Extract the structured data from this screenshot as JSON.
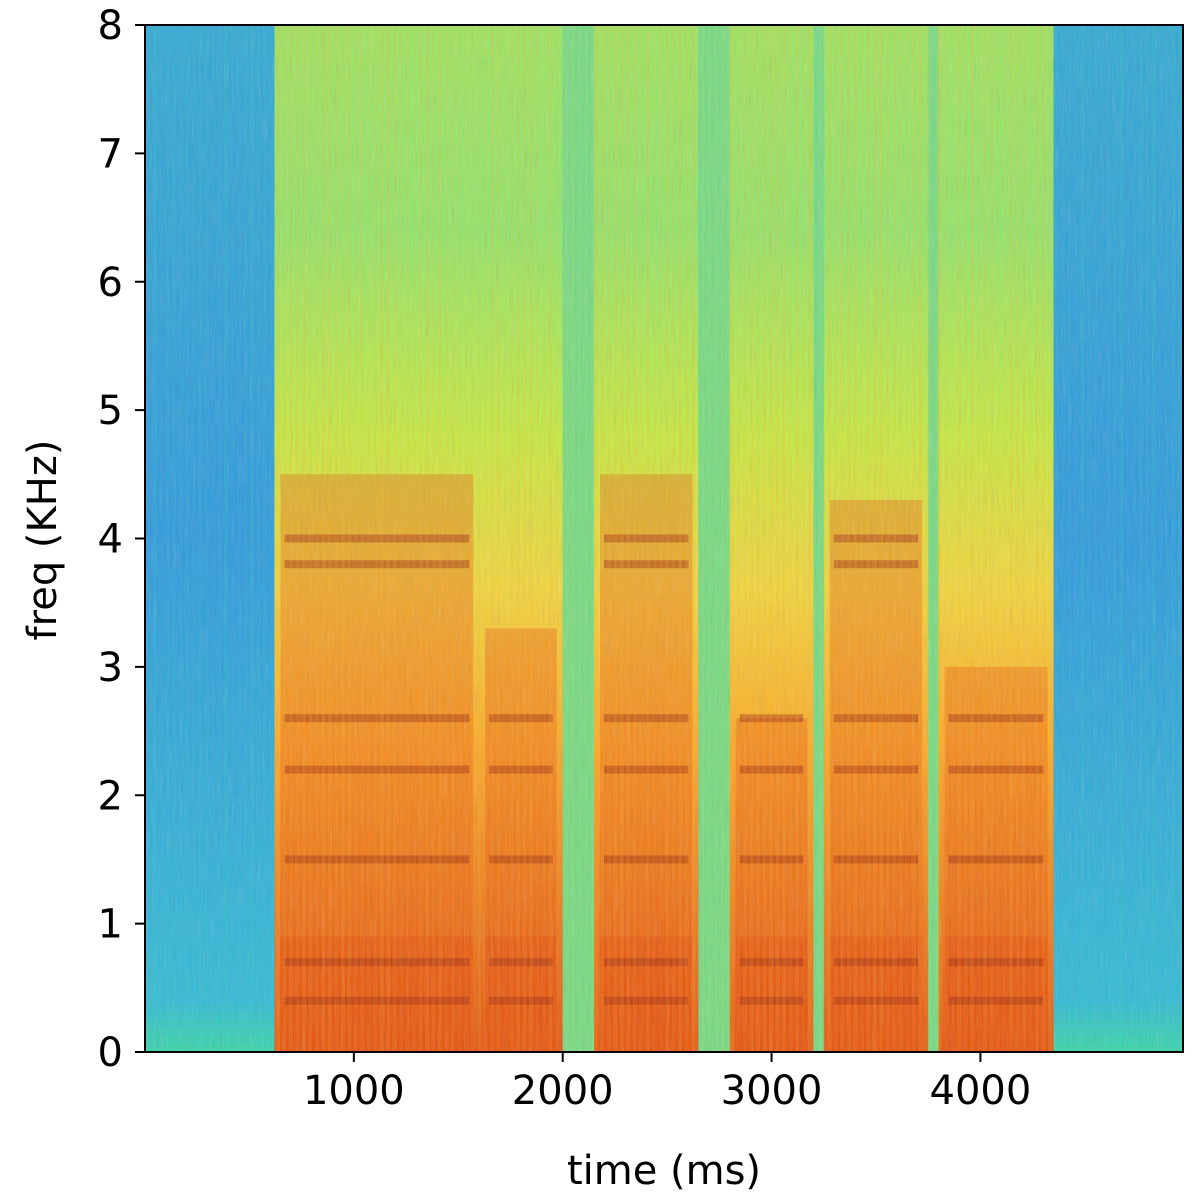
{
  "chart_data": {
    "type": "heatmap",
    "subtype": "spectrogram",
    "xlabel": "time (ms)",
    "ylabel": "freq (KHz)",
    "xlim": [
      0,
      4970
    ],
    "ylim": [
      0,
      8
    ],
    "x_ticks": [
      1000,
      2000,
      3000,
      4000
    ],
    "y_ticks": [
      0,
      1,
      2,
      3,
      4,
      5,
      6,
      7,
      8
    ],
    "colormap": "jet-like (blue low energy to dark red high energy)",
    "colors": {
      "low": "#2a8fe6",
      "mid_low": "#2dd4b8",
      "mid": "#b8f040",
      "mid_high": "#ffb020",
      "high": "#e84a08",
      "peak": "#9a1c04"
    },
    "segments": [
      {
        "name": "silence-start",
        "x_start": 0,
        "x_end": 620,
        "level": "low"
      },
      {
        "name": "speech-1",
        "x_start": 620,
        "x_end": 1600,
        "level": "high",
        "energy_upper_khz": 4.5
      },
      {
        "name": "speech-2",
        "x_start": 1600,
        "x_end": 2000,
        "level": "high",
        "energy_upper_khz": 3.3
      },
      {
        "name": "speech-3",
        "x_start": 2150,
        "x_end": 2650,
        "level": "high",
        "energy_upper_khz": 4.5
      },
      {
        "name": "speech-4",
        "x_start": 2800,
        "x_end": 3200,
        "level": "high",
        "energy_upper_khz": 2.6
      },
      {
        "name": "speech-5",
        "x_start": 3250,
        "x_end": 3750,
        "level": "high",
        "energy_upper_khz": 4.3
      },
      {
        "name": "speech-6",
        "x_start": 3800,
        "x_end": 4350,
        "level": "high",
        "energy_upper_khz": 3.0
      },
      {
        "name": "silence-end",
        "x_start": 4350,
        "x_end": 4970,
        "level": "low"
      }
    ],
    "formant_bands_khz": [
      0.4,
      0.7,
      1.5,
      2.2,
      2.6,
      3.8,
      4.0
    ]
  }
}
